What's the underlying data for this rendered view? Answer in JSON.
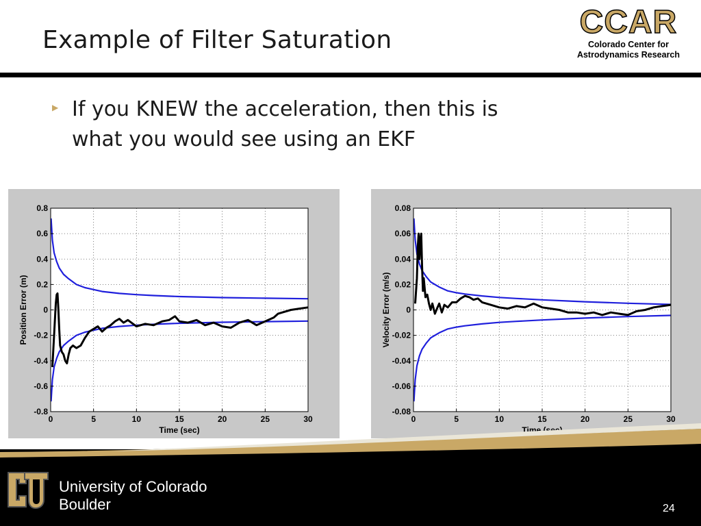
{
  "slide": {
    "title": "Example of Filter Saturation",
    "bullet_icon": "triangle-right-icon",
    "bullet_text_line1": "If you KNEW the acceleration, then this is",
    "bullet_text_line2": "what you would see using an EKF",
    "page_number": "24"
  },
  "logo": {
    "acronym": "CCAR",
    "line1": "Colorado Center for",
    "line2": "Astrodynamics Research",
    "color_gold": "#c9a866"
  },
  "footer": {
    "university_line1": "University of Colorado",
    "university_line2": "Boulder",
    "logo_icon": "cu-logo-icon"
  },
  "chart_data": [
    {
      "type": "line",
      "xlabel": "Time (sec)",
      "ylabel": "Position Error (m)",
      "xlim": [
        0,
        30
      ],
      "ylim": [
        -0.8,
        0.8
      ],
      "xticks": [
        0,
        5,
        10,
        15,
        20,
        25,
        30
      ],
      "yticks": [
        -0.8,
        -0.6,
        -0.4,
        -0.2,
        0,
        0.2,
        0.4,
        0.6,
        0.8
      ],
      "ytick_labels": [
        "-0.8",
        "-0.6",
        "-0.4",
        "-0.2",
        "0",
        "0.2",
        "0.4",
        "0.6",
        "0.8"
      ],
      "grid": true,
      "series": [
        {
          "name": "covariance-upper",
          "color": "#1f1fdc",
          "x": [
            0.05,
            0.2,
            0.4,
            0.7,
            1,
            1.5,
            2,
            3,
            4,
            5,
            6,
            8,
            10,
            12,
            15,
            18,
            20,
            25,
            30
          ],
          "y": [
            0.72,
            0.55,
            0.45,
            0.38,
            0.33,
            0.28,
            0.25,
            0.2,
            0.175,
            0.16,
            0.145,
            0.13,
            0.12,
            0.113,
            0.105,
            0.1,
            0.097,
            0.092,
            0.088
          ]
        },
        {
          "name": "covariance-lower",
          "color": "#1f1fdc",
          "x": [
            0.05,
            0.2,
            0.4,
            0.7,
            1,
            1.5,
            2,
            3,
            4,
            5,
            6,
            8,
            10,
            12,
            15,
            18,
            20,
            25,
            30
          ],
          "y": [
            -0.72,
            -0.55,
            -0.45,
            -0.38,
            -0.33,
            -0.28,
            -0.25,
            -0.2,
            -0.175,
            -0.16,
            -0.145,
            -0.13,
            -0.12,
            -0.113,
            -0.105,
            -0.1,
            -0.097,
            -0.092,
            -0.088
          ]
        },
        {
          "name": "position-error",
          "color": "#000000",
          "x": [
            0.2,
            0.4,
            0.6,
            0.7,
            0.8,
            0.9,
            1.0,
            1.1,
            1.3,
            1.5,
            1.7,
            1.9,
            2.1,
            2.3,
            2.6,
            3,
            3.5,
            4,
            4.5,
            5,
            5.5,
            6,
            6.5,
            7,
            7.5,
            8,
            8.5,
            9,
            10,
            11,
            12,
            13,
            13.8,
            14.5,
            15,
            16,
            17,
            18,
            19,
            20,
            21,
            22,
            23,
            24,
            25,
            26,
            26.5,
            27,
            28,
            29,
            30
          ],
          "y": [
            -0.45,
            -0.2,
            0.05,
            0.12,
            0.13,
            0.0,
            -0.15,
            -0.28,
            -0.33,
            -0.35,
            -0.4,
            -0.42,
            -0.35,
            -0.3,
            -0.28,
            -0.3,
            -0.28,
            -0.22,
            -0.17,
            -0.15,
            -0.13,
            -0.17,
            -0.14,
            -0.12,
            -0.09,
            -0.07,
            -0.1,
            -0.08,
            -0.13,
            -0.11,
            -0.12,
            -0.09,
            -0.08,
            -0.05,
            -0.09,
            -0.1,
            -0.08,
            -0.12,
            -0.1,
            -0.13,
            -0.14,
            -0.1,
            -0.08,
            -0.12,
            -0.09,
            -0.06,
            -0.03,
            -0.02,
            0.0,
            0.01,
            0.02
          ]
        }
      ]
    },
    {
      "type": "line",
      "xlabel": "Time (sec)",
      "ylabel": "Velocity Error (m/s)",
      "xlim": [
        0,
        30
      ],
      "ylim": [
        -0.08,
        0.08
      ],
      "xticks": [
        0,
        5,
        10,
        15,
        20,
        25,
        30
      ],
      "yticks": [
        -0.08,
        -0.06,
        -0.04,
        -0.02,
        0,
        0.02,
        0.04,
        0.06,
        0.08
      ],
      "ytick_labels": [
        "-0.08",
        "-0.06",
        "-0.04",
        "-0.02",
        "0",
        "0.02",
        "0.04",
        "0.06",
        "0.08"
      ],
      "grid": true,
      "series": [
        {
          "name": "covariance-upper",
          "color": "#1f1fdc",
          "x": [
            0.05,
            0.2,
            0.4,
            0.7,
            1,
            1.5,
            2,
            3,
            4,
            5,
            6,
            8,
            10,
            12,
            15,
            18,
            20,
            25,
            30
          ],
          "y": [
            0.072,
            0.055,
            0.044,
            0.036,
            0.031,
            0.026,
            0.022,
            0.018,
            0.015,
            0.0135,
            0.0125,
            0.011,
            0.0098,
            0.009,
            0.0079,
            0.007,
            0.0064,
            0.0052,
            0.0043
          ]
        },
        {
          "name": "covariance-lower",
          "color": "#1f1fdc",
          "x": [
            0.05,
            0.2,
            0.4,
            0.7,
            1,
            1.5,
            2,
            3,
            4,
            5,
            6,
            8,
            10,
            12,
            15,
            18,
            20,
            25,
            30
          ],
          "y": [
            -0.072,
            -0.055,
            -0.044,
            -0.036,
            -0.031,
            -0.026,
            -0.022,
            -0.018,
            -0.015,
            -0.0135,
            -0.0125,
            -0.011,
            -0.0098,
            -0.009,
            -0.0079,
            -0.007,
            -0.0064,
            -0.0052,
            -0.0043
          ]
        },
        {
          "name": "velocity-error",
          "color": "#000000",
          "x": [
            0.2,
            0.4,
            0.5,
            0.6,
            0.7,
            0.8,
            0.9,
            1.0,
            1.1,
            1.2,
            1.4,
            1.6,
            1.8,
            2.0,
            2.2,
            2.5,
            2.8,
            3,
            3.3,
            3.6,
            4,
            4.5,
            5,
            5.5,
            6,
            6.5,
            7,
            7.5,
            8,
            9,
            10,
            11,
            12,
            13,
            14,
            15,
            16,
            17,
            18,
            19,
            20,
            21,
            22,
            23,
            24,
            25,
            26,
            27,
            28,
            29,
            30
          ],
          "y": [
            0.005,
            0.025,
            0.05,
            0.06,
            0.04,
            0.055,
            0.06,
            0.035,
            0.015,
            0.025,
            0.01,
            0.012,
            0.005,
            0.0,
            0.005,
            -0.003,
            0.002,
            0.005,
            -0.002,
            0.004,
            0.002,
            0.006,
            0.006,
            0.009,
            0.011,
            0.01,
            0.008,
            0.009,
            0.006,
            0.004,
            0.002,
            0.001,
            0.003,
            0.002,
            0.005,
            0.002,
            0.001,
            0.0,
            -0.002,
            -0.002,
            -0.003,
            -0.002,
            -0.004,
            -0.002,
            -0.003,
            -0.004,
            -0.001,
            0.0,
            0.002,
            0.003,
            0.004
          ]
        }
      ]
    }
  ]
}
